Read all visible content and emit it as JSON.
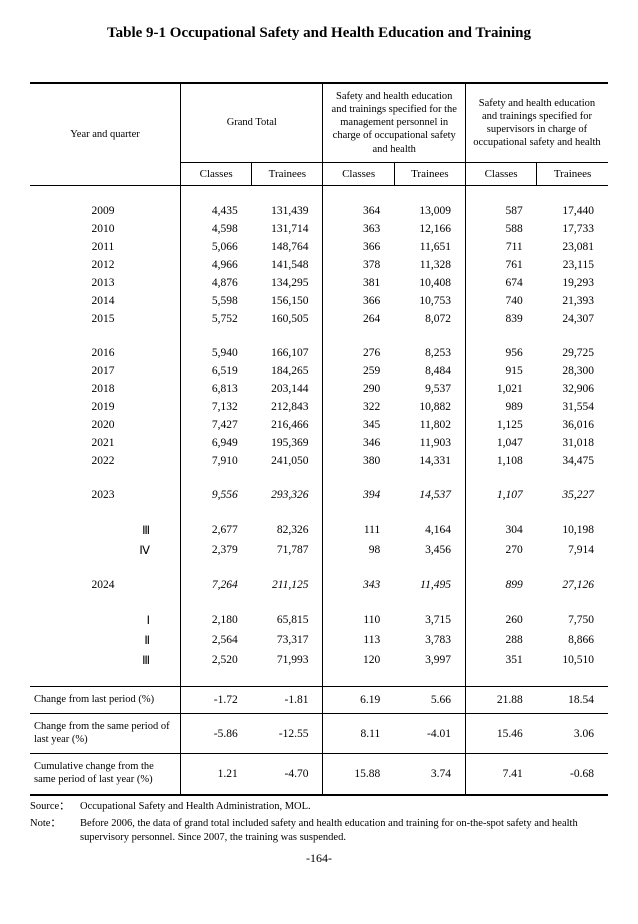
{
  "title": "Table 9-1 Occupational Safety and Health Education and Training",
  "corner": "Year and quarter",
  "groups": {
    "g1": "Grand Total",
    "g2": "Safety and health education and trainings specified for the management personnel in charge of occupational safety and health",
    "g3": "Safety and health education and trainings specified for supervisors in charge of occupational safety and health"
  },
  "sub": {
    "classes": "Classes",
    "trainees": "Trainees"
  },
  "rows": [
    {
      "label": "2009",
      "v": [
        "4,435",
        "131,439",
        "364",
        "13,009",
        "587",
        "17,440"
      ]
    },
    {
      "label": "2010",
      "v": [
        "4,598",
        "131,714",
        "363",
        "12,166",
        "588",
        "17,733"
      ]
    },
    {
      "label": "2011",
      "v": [
        "5,066",
        "148,764",
        "366",
        "11,651",
        "711",
        "23,081"
      ]
    },
    {
      "label": "2012",
      "v": [
        "4,966",
        "141,548",
        "378",
        "11,328",
        "761",
        "23,115"
      ]
    },
    {
      "label": "2013",
      "v": [
        "4,876",
        "134,295",
        "381",
        "10,408",
        "674",
        "19,293"
      ]
    },
    {
      "label": "2014",
      "v": [
        "5,598",
        "156,150",
        "366",
        "10,753",
        "740",
        "21,393"
      ]
    },
    {
      "label": "2015",
      "v": [
        "5,752",
        "160,505",
        "264",
        "8,072",
        "839",
        "24,307"
      ]
    },
    {
      "label": "2016",
      "v": [
        "5,940",
        "166,107",
        "276",
        "8,253",
        "956",
        "29,725"
      ],
      "gap": true
    },
    {
      "label": "2017",
      "v": [
        "6,519",
        "184,265",
        "259",
        "8,484",
        "915",
        "28,300"
      ]
    },
    {
      "label": "2018",
      "v": [
        "6,813",
        "203,144",
        "290",
        "9,537",
        "1,021",
        "32,906"
      ]
    },
    {
      "label": "2019",
      "v": [
        "7,132",
        "212,843",
        "322",
        "10,882",
        "989",
        "31,554"
      ]
    },
    {
      "label": "2020",
      "v": [
        "7,427",
        "216,466",
        "345",
        "11,802",
        "1,125",
        "36,016"
      ]
    },
    {
      "label": "2021",
      "v": [
        "6,949",
        "195,369",
        "346",
        "11,903",
        "1,047",
        "31,018"
      ]
    },
    {
      "label": "2022",
      "v": [
        "7,910",
        "241,050",
        "380",
        "14,331",
        "1,108",
        "34,475"
      ]
    },
    {
      "label": "2023",
      "v": [
        "9,556",
        "293,326",
        "394",
        "14,537",
        "1,107",
        "35,227"
      ],
      "gap": true,
      "italic": true
    },
    {
      "label": "Ⅲ",
      "v": [
        "2,677",
        "82,326",
        "111",
        "4,164",
        "304",
        "10,198"
      ],
      "gap": true,
      "sub": true
    },
    {
      "label": "Ⅳ",
      "v": [
        "2,379",
        "71,787",
        "98",
        "3,456",
        "270",
        "7,914"
      ],
      "sub": true
    },
    {
      "label": "2024",
      "v": [
        "7,264",
        "211,125",
        "343",
        "11,495",
        "899",
        "27,126"
      ],
      "gap": true,
      "italic": true
    },
    {
      "label": "Ⅰ",
      "v": [
        "2,180",
        "65,815",
        "110",
        "3,715",
        "260",
        "7,750"
      ],
      "gap": true,
      "sub": true
    },
    {
      "label": "Ⅱ",
      "v": [
        "2,564",
        "73,317",
        "113",
        "3,783",
        "288",
        "8,866"
      ],
      "sub": true
    },
    {
      "label": "Ⅲ",
      "v": [
        "2,520",
        "71,993",
        "120",
        "3,997",
        "351",
        "10,510"
      ],
      "sub": true
    }
  ],
  "changes": [
    {
      "label": "Change from last period (%)",
      "v": [
        "-1.72",
        "-1.81",
        "6.19",
        "5.66",
        "21.88",
        "18.54"
      ]
    },
    {
      "label": "Change from the same period of last year (%)",
      "v": [
        "-5.86",
        "-12.55",
        "8.11",
        "-4.01",
        "15.46",
        "3.06"
      ]
    },
    {
      "label": "Cumulative change from the same period of last year (%)",
      "v": [
        "1.21",
        "-4.70",
        "15.88",
        "3.74",
        "7.41",
        "-0.68"
      ]
    }
  ],
  "source_lbl": "Source：",
  "source": "Occupational Safety and Health Administration, MOL.",
  "note_lbl": "Note：",
  "note": "Before 2006, the data of grand total included safety and health education and training for on-the-spot safety and health supervisory personnel. Since 2007, the training was suspended.",
  "page": "-164-"
}
